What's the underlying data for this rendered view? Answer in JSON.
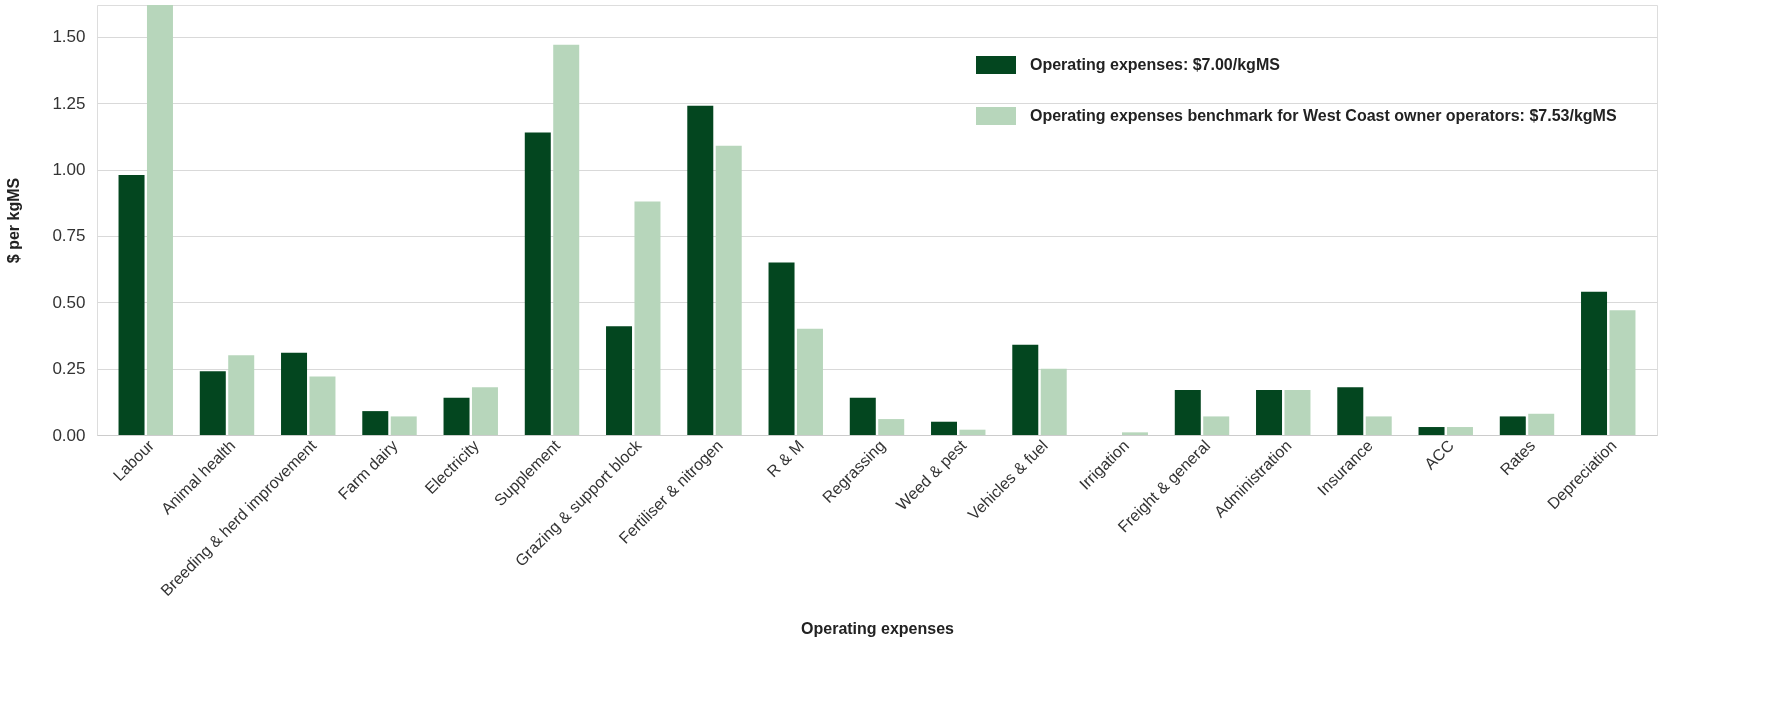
{
  "chart_data": {
    "type": "bar",
    "xlabel": "Operating expenses",
    "ylabel": "$ per kgMS",
    "categories": [
      "Labour",
      "Animal health",
      "Breeding & herd improvement",
      "Farm dairy",
      "Electricity",
      "Supplement",
      "Grazing & support block",
      "Fertiliser & nitrogen",
      "R & M",
      "Regrassing",
      "Weed & pest",
      "Vehicles & fuel",
      "Irrigation",
      "Freight & general",
      "Administration",
      "Insurance",
      "ACC",
      "Rates",
      "Depreciation"
    ],
    "series": [
      {
        "name": "Operating expenses: $7.00/kgMS",
        "color": "#03461f",
        "values": [
          0.98,
          0.24,
          0.31,
          0.09,
          0.14,
          1.14,
          0.41,
          1.24,
          0.65,
          0.14,
          0.05,
          0.34,
          null,
          0.17,
          0.17,
          0.18,
          0.03,
          0.07,
          0.54
        ]
      },
      {
        "name": "Operating expenses benchmark for West Coast owner operators: $7.53/kgMS",
        "color": "#b7d6bb",
        "values": [
          1.62,
          0.3,
          0.22,
          0.07,
          0.18,
          1.47,
          0.88,
          1.09,
          0.4,
          0.06,
          0.02,
          0.25,
          0.01,
          0.07,
          0.17,
          0.07,
          0.03,
          0.08,
          0.47
        ]
      }
    ],
    "ylim": [
      0,
      1.62
    ],
    "yticks": [
      {
        "value": 0,
        "label": "0.00"
      },
      {
        "value": 0.25,
        "label": "0.25"
      },
      {
        "value": 0.5,
        "label": "0.50"
      },
      {
        "value": 0.75,
        "label": "0.75"
      },
      {
        "value": 1,
        "label": "1.00"
      },
      {
        "value": 1.25,
        "label": "1.25"
      },
      {
        "value": 1.5,
        "label": "1.50"
      }
    ],
    "grid": "y",
    "legend": "top right"
  }
}
